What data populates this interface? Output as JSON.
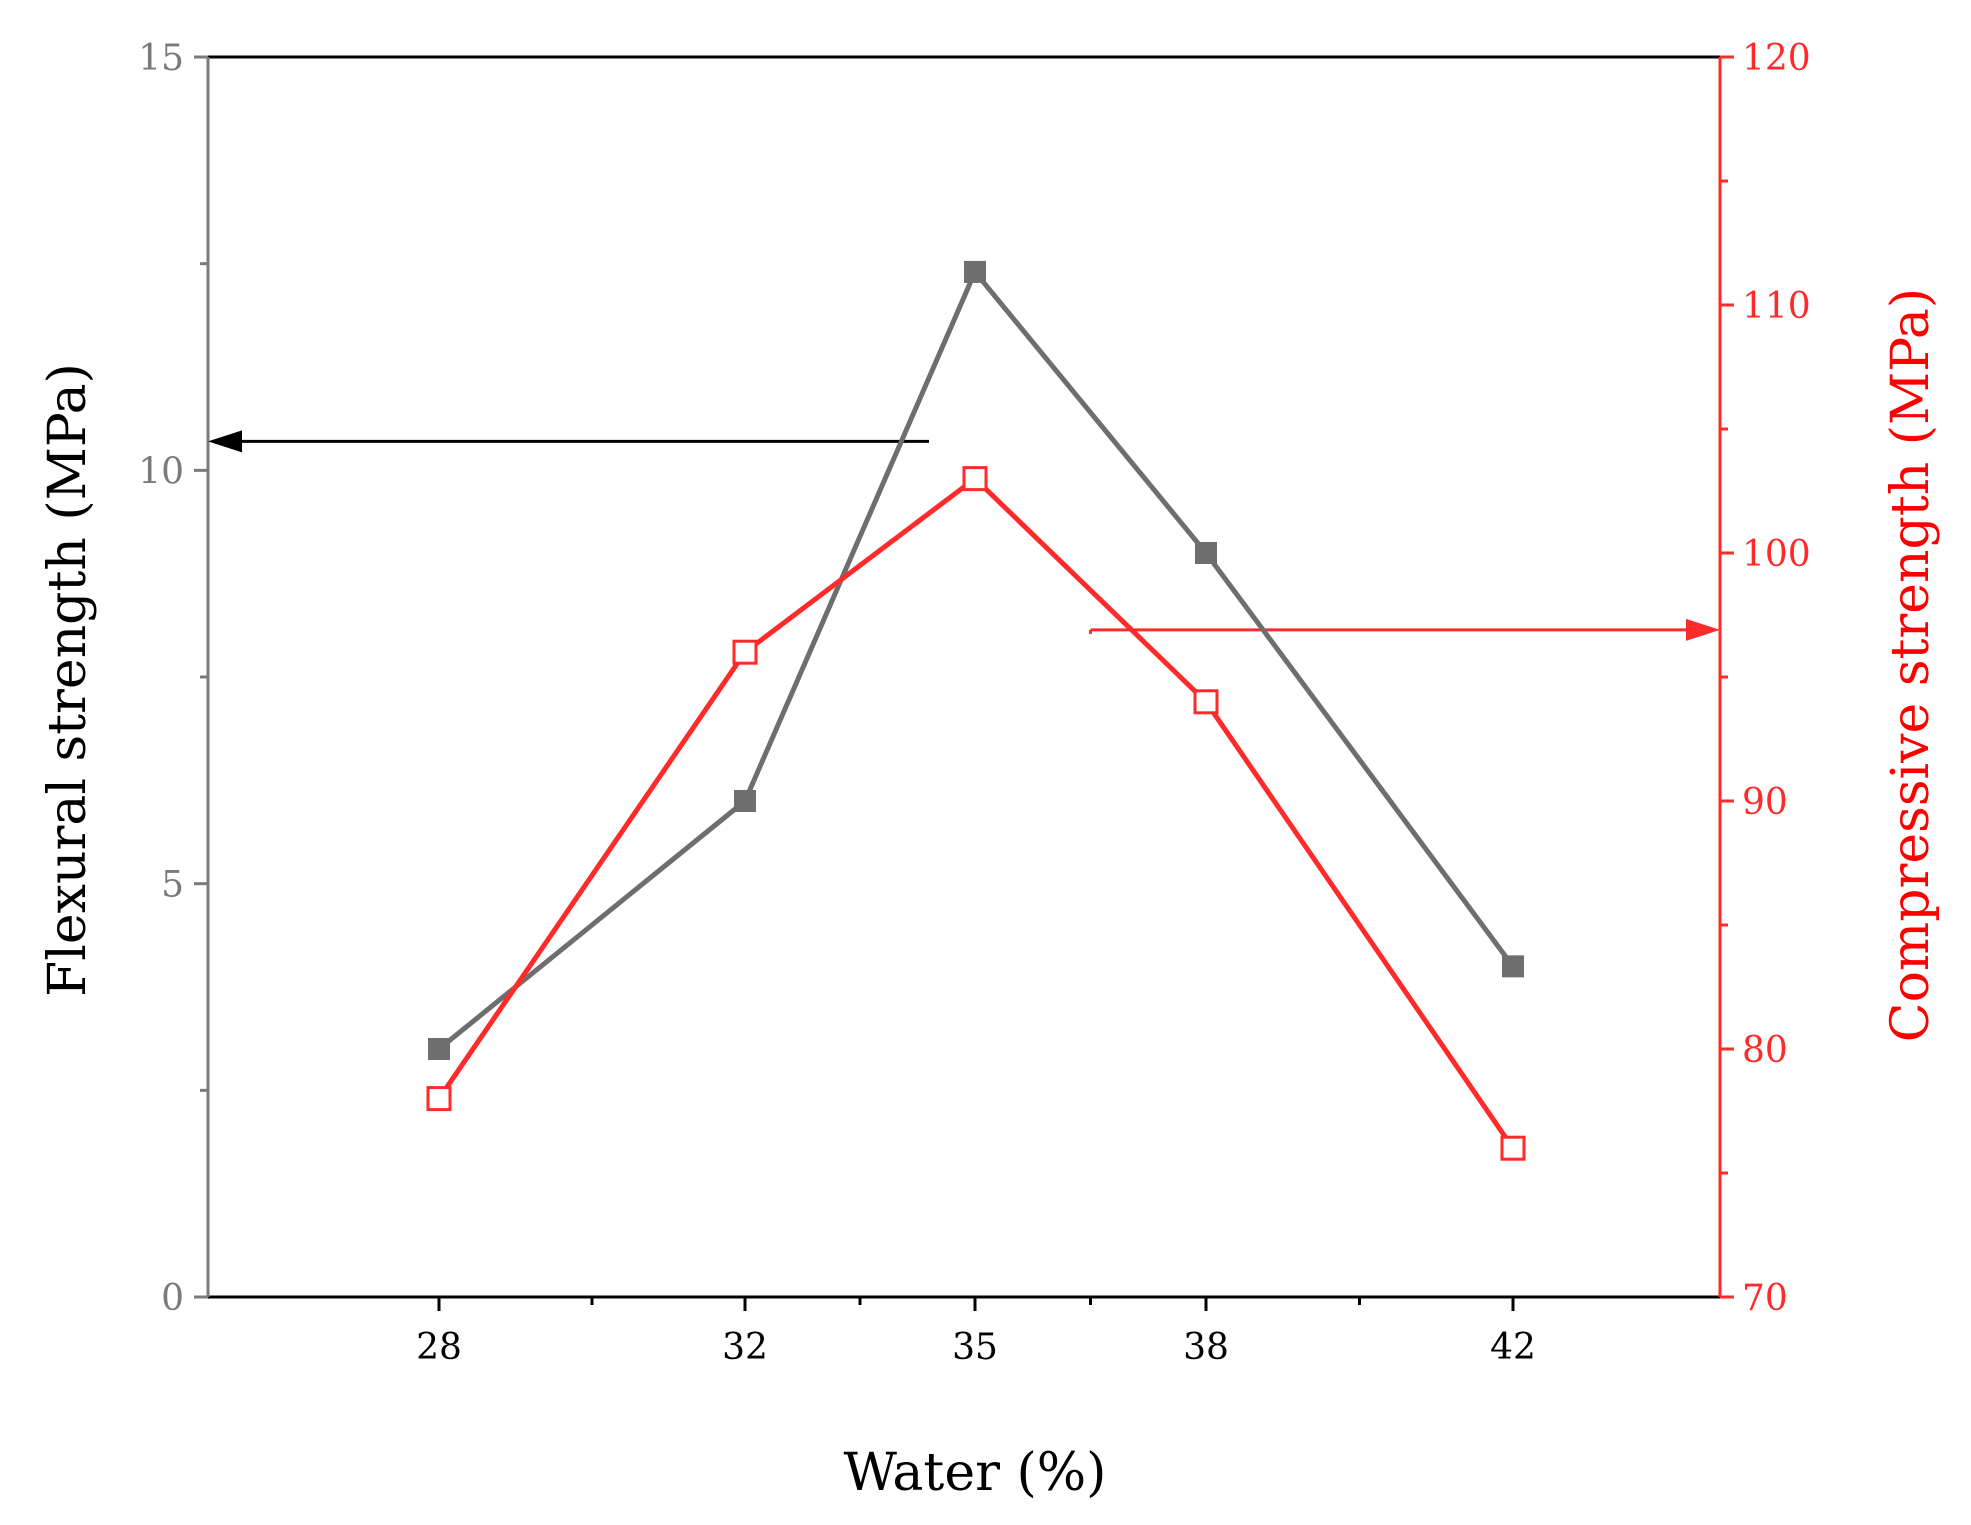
{
  "chart_data": {
    "type": "line",
    "title": "",
    "xlabel": "Water (%)",
    "ylabel_left": "Flexural strength (MPa)",
    "ylabel_right": "Compressive strength (MPa)",
    "x_ticks": [
      "28",
      "32",
      "35",
      "38",
      "42"
    ],
    "x": [
      28,
      32,
      35,
      38,
      42
    ],
    "xlim": [
      25,
      45
    ],
    "ylim_left": [
      0,
      15
    ],
    "ylim_right": [
      70,
      120
    ],
    "y_ticks_left": [
      "0",
      "5",
      "10",
      "15"
    ],
    "y_ticks_right": [
      "70",
      "80",
      "90",
      "100",
      "110",
      "120"
    ],
    "grid": false,
    "series": [
      {
        "name": "Flexural strength",
        "axis": "left",
        "marker": "filled-square",
        "color": "#6e6e6e",
        "values": [
          3.0,
          6.0,
          12.4,
          9.0,
          4.0
        ]
      },
      {
        "name": "Compressive strength",
        "axis": "right",
        "marker": "open-square",
        "color": "#ff2a2a",
        "values": [
          78,
          96,
          103,
          94,
          76
        ]
      }
    ],
    "annotations": [
      {
        "type": "arrow",
        "direction": "left",
        "points_to": "left-axis",
        "series": "Flexural strength",
        "color": "#000000",
        "y_value_left": 10.35,
        "x_from": 34.4
      },
      {
        "type": "arrow",
        "direction": "right",
        "points_to": "right-axis",
        "series": "Compressive strength",
        "color": "#ff2a2a",
        "y_value_right": 96.9,
        "x_from": 36.5
      }
    ],
    "colors": {
      "left_axis": "#7a7a7a",
      "right_axis": "#ff2a2a",
      "frame": "#000000",
      "left_title": "#000000",
      "right_title": "#ff0000"
    }
  }
}
